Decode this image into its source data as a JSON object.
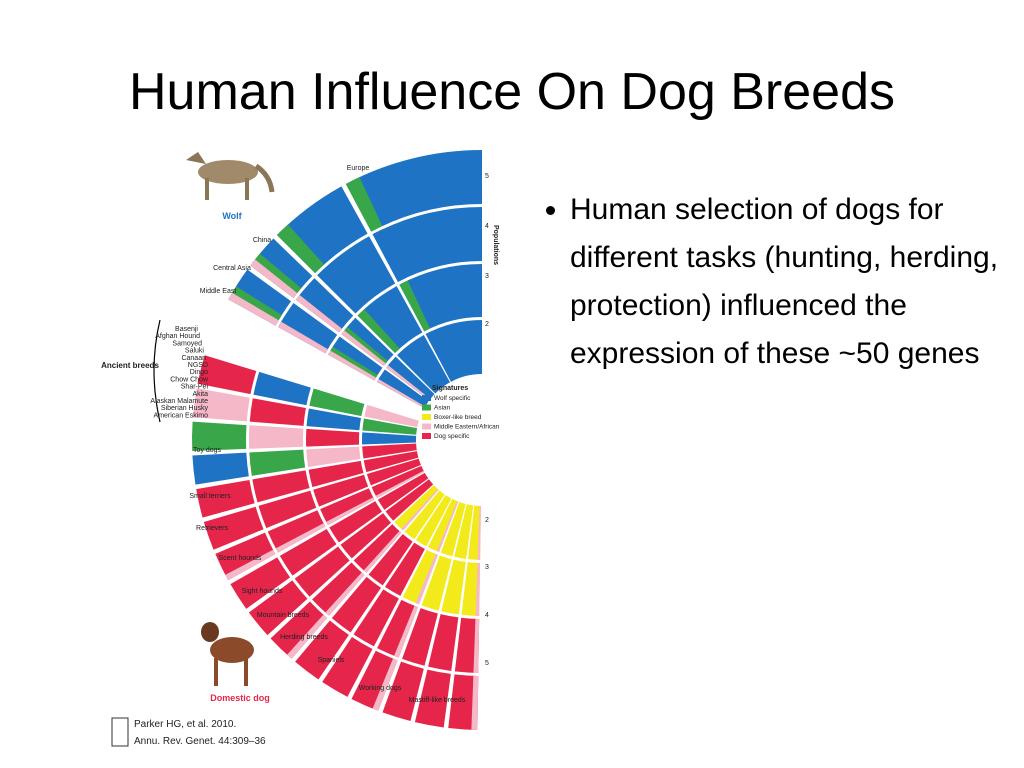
{
  "title": "Human Influence On Dog Breeds",
  "bullets": [
    "Human selection of dogs for different tasks (hunting, herding, protection) influenced the expression of these ~50 genes"
  ],
  "figure": {
    "wolf_label": "Wolf",
    "domestic_label": "Domestic dog",
    "regions": [
      "Europe",
      "China",
      "Central Asia",
      "Middle East"
    ],
    "ancient_label": "Ancient breeds",
    "ancient_breeds": [
      "Basenji",
      "Afghan Hound",
      "Samoyed",
      "Saluki",
      "Canaan",
      "NGSD",
      "Dingo",
      "Chow Chow",
      "Shar-Pei",
      "Akita",
      "Alaskan Malamute",
      "Siberian Husky",
      "American Eskimo"
    ],
    "groups": [
      "Toy dogs",
      "Small terriers",
      "Retrievers",
      "Scent hounds",
      "Sight hounds",
      "Mountain breeds",
      "Herding breeds",
      "Spaniels",
      "Working dogs",
      "Mastiff-like breeds"
    ],
    "populations_label": "Populations",
    "top_numbers": [
      "5",
      "4",
      "3",
      "2"
    ],
    "bottom_numbers": [
      "2",
      "3",
      "4",
      "5"
    ],
    "legend_title": "Signatures",
    "signatures": [
      {
        "name": "Wolf specific",
        "color": "#1f73c4"
      },
      {
        "name": "Asian",
        "color": "#3aa64a"
      },
      {
        "name": "Boxer-like breed",
        "color": "#f2ea1a"
      },
      {
        "name": "Middle Eastern/African",
        "color": "#f5b8c8"
      },
      {
        "name": "Dog specific",
        "color": "#e5264a"
      }
    ],
    "citation": [
      "Parker HG, et al. 2010.",
      "Annu. Rev. Genet. 44:309–36"
    ]
  }
}
